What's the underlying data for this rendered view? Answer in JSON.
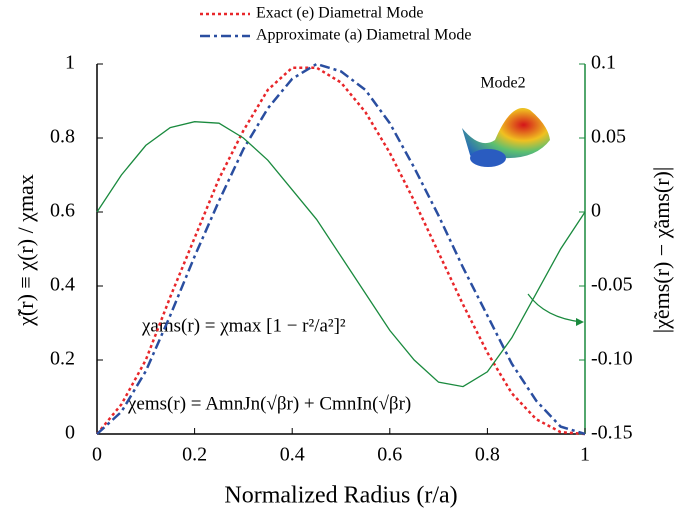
{
  "chart_data": {
    "type": "line",
    "x": [
      0,
      0.05,
      0.1,
      0.15,
      0.2,
      0.25,
      0.3,
      0.35,
      0.4,
      0.45,
      0.5,
      0.55,
      0.6,
      0.65,
      0.7,
      0.75,
      0.8,
      0.85,
      0.9,
      0.95,
      1
    ],
    "series": [
      {
        "name": "Exact (e) Diametral Mode",
        "color": "#e8262a",
        "style": "dotted",
        "values": [
          0,
          0.08,
          0.2,
          0.37,
          0.53,
          0.69,
          0.82,
          0.93,
          0.99,
          0.99,
          0.95,
          0.87,
          0.76,
          0.63,
          0.49,
          0.35,
          0.22,
          0.11,
          0.04,
          0.005,
          0
        ]
      },
      {
        "name": "Approximate (a) Diametral Mode",
        "color": "#2a4ea0",
        "style": "dashdot",
        "values": [
          0,
          0.06,
          0.17,
          0.32,
          0.48,
          0.63,
          0.77,
          0.88,
          0.96,
          1.0,
          0.98,
          0.93,
          0.84,
          0.72,
          0.59,
          0.45,
          0.32,
          0.19,
          0.09,
          0.02,
          0
        ]
      },
      {
        "color": "#1a8a3e",
        "style": "solid",
        "axis": "y2",
        "values": [
          0,
          0.025,
          0.045,
          0.057,
          0.061,
          0.06,
          0.05,
          0.035,
          0.015,
          -0.005,
          -0.03,
          -0.055,
          -0.08,
          -0.1,
          -0.115,
          -0.118,
          -0.108,
          -0.085,
          -0.055,
          -0.025,
          0
        ]
      }
    ],
    "xlabel": "Normalized Radius (r/a)",
    "ylabel": "χ̃(r) ≡ χ(r) / χmax",
    "y2label": "|χ̃ems(r) − χ̃ams(r)|",
    "xlim": [
      0,
      1
    ],
    "xticks": [
      0,
      0.2,
      0.4,
      0.6,
      0.8,
      1
    ],
    "ylim": [
      0,
      1
    ],
    "yticks": [
      0,
      0.2,
      0.4,
      0.6,
      0.8,
      1
    ],
    "y2lim": [
      -0.15,
      0.1
    ],
    "y2ticks": [
      {
        "value": -0.15,
        "label": "-0.15"
      },
      {
        "value": -0.1,
        "label": "-0.10"
      },
      -0.05,
      0,
      0.05,
      0.1
    ],
    "y2color": "#1a8a3e",
    "legend": "top",
    "annotations": [
      "Mode2",
      "χams(r) = χmax [1 − r²/a²]²",
      "χems(r) = AmnJn(√βr) + CmnIn(√βr)"
    ]
  }
}
